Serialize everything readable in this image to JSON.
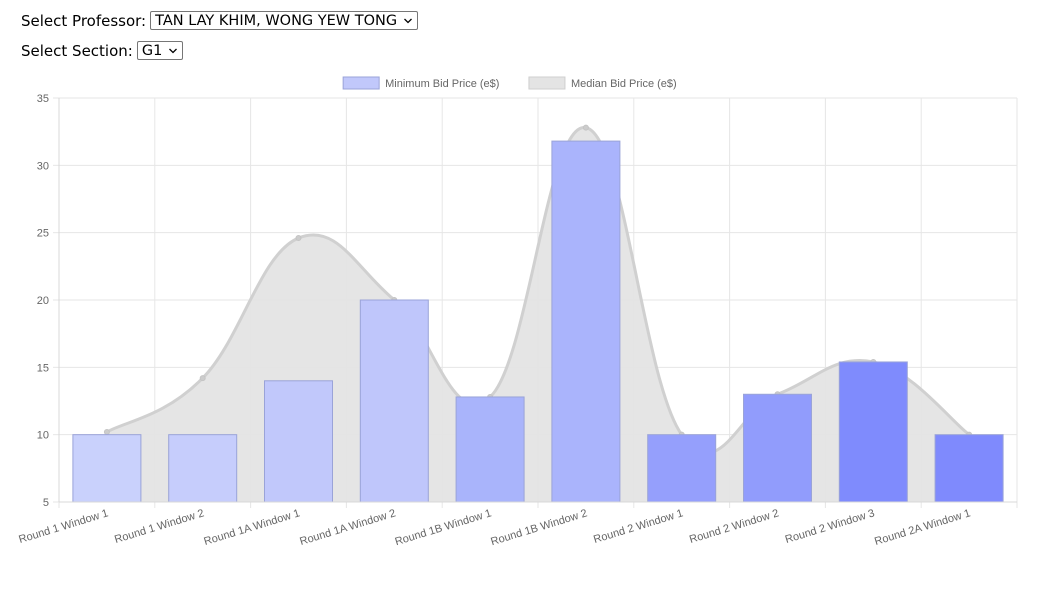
{
  "controls": {
    "professor_label": "Select Professor:",
    "professor_value": "TAN LAY KHIM, WONG YEW TONG",
    "section_label": "Select Section:",
    "section_value": "G1"
  },
  "colors": {
    "median_fill": "#e4e4e4",
    "median_stroke": "#d0d0d0",
    "bar_stroke": "#9aa3d8",
    "bar_fills": [
      "#c9d1fc",
      "#c6cdfc",
      "#c1c8fb",
      "#bfc6fb",
      "#a9b4fb",
      "#aab4fc",
      "#959ffc",
      "#919cfc",
      "#7f8bfd",
      "#7f8afd"
    ],
    "grid": "#e6e6e6",
    "tick_text": "#666666"
  },
  "icons": {
    "select_arrow": "chevron-down-icon"
  },
  "chart_data": {
    "type": "bar",
    "categories": [
      "Round 1 Window 1",
      "Round 1 Window 2",
      "Round 1A Window 1",
      "Round 1A Window 2",
      "Round 1B Window 1",
      "Round 1B Window 2",
      "Round 2 Window 1",
      "Round 2 Window 2",
      "Round 2 Window 3",
      "Round 2A Window 1"
    ],
    "series": [
      {
        "name": "Minimum Bid Price (e$)",
        "type": "bar",
        "values": [
          10,
          10,
          14,
          20,
          12.8,
          31.8,
          10,
          13,
          15.4,
          10
        ]
      },
      {
        "name": "Median Bid Price (e$)",
        "type": "area",
        "values": [
          10.2,
          14.2,
          24.6,
          20,
          12.8,
          32.8,
          10,
          13,
          15.4,
          10
        ]
      }
    ],
    "ylim": [
      5,
      35
    ],
    "yticks": [
      5,
      10,
      15,
      20,
      25,
      30,
      35
    ],
    "grid": true,
    "legend_position": "top-center"
  }
}
